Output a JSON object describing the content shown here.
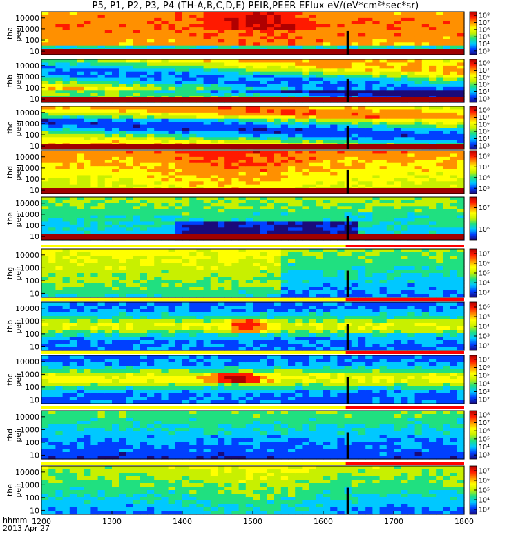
{
  "title": "P5, P1, P2, P3, P4 (TH-A,B,C,D,E) PEIR,PEER EFlux eV/(eV*cm²*sec*sr)",
  "footer": {
    "time_label": "hhmm",
    "date_label": "2013 Apr 27"
  },
  "chart_data": {
    "type": "heatmap",
    "title": "P5, P1, P2, P3, P4 (TH-A,B,C,D,E) PEIR,PEER EFlux eV/(eV*cm²*sec*sr)",
    "x_ticks": [
      "1200",
      "1300",
      "1400",
      "1500",
      "1600",
      "1700",
      "1800"
    ],
    "x_range": [
      "1200",
      "1800"
    ],
    "y_scale": "log",
    "y_ticks": [
      "10",
      "100",
      "1000",
      "10000"
    ],
    "colorscale": [
      "#1a0a7a",
      "#0040ff",
      "#00c8ff",
      "#20e080",
      "#c8f000",
      "#ffff00",
      "#ff9000",
      "#ff1a00",
      "#b00000"
    ],
    "panels": [
      {
        "label": [
          "tha",
          "peer"
        ],
        "colorbar_ticks": [
          "10³",
          "10⁴",
          "10⁵",
          "10⁶",
          "10⁷",
          "10⁸"
        ]
      },
      {
        "label": [
          "thb",
          "peer"
        ],
        "colorbar_ticks": [
          "10³",
          "10⁴",
          "10⁵",
          "10⁶",
          "10⁷",
          "10⁸"
        ]
      },
      {
        "label": [
          "thc",
          "peer"
        ],
        "colorbar_ticks": [
          "10³",
          "10⁴",
          "10⁵",
          "10⁶",
          "10⁷",
          "10⁸"
        ]
      },
      {
        "label": [
          "thd",
          "peer"
        ],
        "colorbar_ticks": [
          "10⁵",
          "10⁶",
          "10⁷",
          "10⁸"
        ]
      },
      {
        "label": [
          "the",
          "peer"
        ],
        "colorbar_ticks": [
          "10⁶",
          "10⁷"
        ]
      },
      {
        "label": [
          "thg",
          "peir"
        ],
        "colorbar_ticks": [
          "10³",
          "10⁴",
          "10⁵",
          "10⁶",
          "10⁷"
        ]
      },
      {
        "label": [
          "thb",
          "peir"
        ],
        "colorbar_ticks": [
          "10²",
          "10³",
          "10⁴",
          "10⁵",
          "10⁶"
        ]
      },
      {
        "label": [
          "thc",
          "peir"
        ],
        "colorbar_ticks": [
          "10²",
          "10³",
          "10⁴",
          "10⁵",
          "10⁶",
          "10⁷"
        ]
      },
      {
        "label": [
          "thd",
          "peir"
        ],
        "colorbar_ticks": [
          "10³",
          "10⁴",
          "10⁵",
          "10⁶",
          "10⁷",
          "10⁸"
        ]
      },
      {
        "label": [
          "the",
          "peir"
        ],
        "colorbar_ticks": [
          "10³",
          "10⁴",
          "10⁵",
          "10⁶",
          "10⁷"
        ]
      }
    ]
  }
}
